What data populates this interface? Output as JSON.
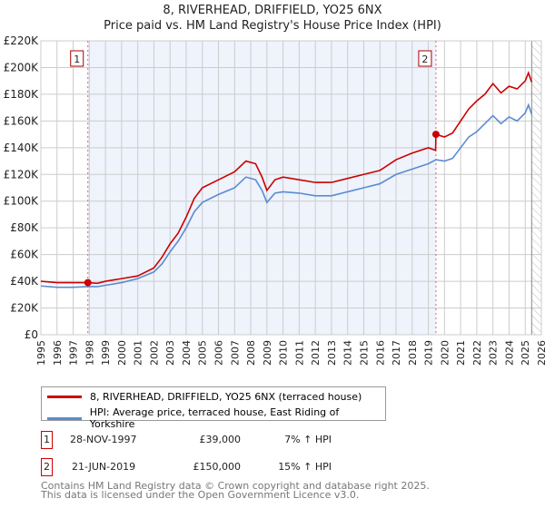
{
  "chart_data": {
    "type": "line",
    "title": "8, RIVERHEAD, DRIFFIELD, YO25 6NX",
    "subtitle": "Price paid vs. HM Land Registry's House Price Index (HPI)",
    "xlim": [
      1995,
      2026
    ],
    "ylim": [
      0,
      220000
    ],
    "x_ticks": [
      "1995",
      "1996",
      "1997",
      "1998",
      "1999",
      "2000",
      "2001",
      "2002",
      "2003",
      "2004",
      "2005",
      "2006",
      "2007",
      "2008",
      "2009",
      "2010",
      "2011",
      "2012",
      "2013",
      "2014",
      "2015",
      "2016",
      "2017",
      "2018",
      "2019",
      "2020",
      "2021",
      "2022",
      "2023",
      "2024",
      "2025",
      "2026"
    ],
    "y_ticks": [
      "£0",
      "£20K",
      "£40K",
      "£60K",
      "£80K",
      "£100K",
      "£120K",
      "£140K",
      "£160K",
      "£180K",
      "£200K",
      "£220K"
    ],
    "grid": true,
    "series": [
      {
        "name": "8, RIVERHEAD, DRIFFIELD, YO25 6NX (terraced house)",
        "color": "#cc0000",
        "x": [
          1995,
          1996,
          1997,
          1997.9,
          1998.5,
          1999,
          2000,
          2001,
          2002,
          2002.5,
          2003,
          2003.5,
          2004,
          2004.5,
          2005,
          2006,
          2007,
          2007.7,
          2008.3,
          2008.7,
          2009,
          2009.5,
          2010,
          2011,
          2012,
          2013,
          2014,
          2015,
          2016,
          2017,
          2018,
          2019,
          2019.45,
          2019.47,
          2020,
          2020.5,
          2021,
          2021.5,
          2022,
          2022.5,
          2023,
          2023.5,
          2024,
          2024.5,
          2025,
          2025.2,
          2025.4
        ],
        "y": [
          40000,
          39000,
          39000,
          39000,
          38500,
          40000,
          42000,
          44000,
          50000,
          58000,
          68000,
          76000,
          88000,
          102000,
          110000,
          116000,
          122000,
          130000,
          128000,
          118000,
          108000,
          116000,
          118000,
          116000,
          114000,
          114000,
          117000,
          120000,
          123000,
          131000,
          136000,
          140000,
          138000,
          150000,
          148000,
          151000,
          160000,
          169000,
          175000,
          180000,
          188000,
          181000,
          186000,
          184000,
          190000,
          196000,
          189000
        ]
      },
      {
        "name": "HPI: Average price, terraced house, East Riding of Yorkshire",
        "color": "#5b8bd0",
        "x": [
          1995,
          1996,
          1997,
          1997.9,
          1998.5,
          1999,
          2000,
          2001,
          2002,
          2002.5,
          2003,
          2003.5,
          2004,
          2004.5,
          2005,
          2006,
          2007,
          2007.7,
          2008.3,
          2008.7,
          2009,
          2009.5,
          2010,
          2011,
          2012,
          2013,
          2014,
          2015,
          2016,
          2017,
          2018,
          2019,
          2019.47,
          2020,
          2020.5,
          2021,
          2021.5,
          2022,
          2022.5,
          2023,
          2023.5,
          2024,
          2024.5,
          2025,
          2025.2,
          2025.4
        ],
        "y": [
          36500,
          35500,
          35500,
          36000,
          36000,
          37000,
          39000,
          42000,
          47000,
          53000,
          62000,
          70000,
          80000,
          92000,
          99000,
          105000,
          110000,
          118000,
          116000,
          108000,
          99000,
          106000,
          107000,
          106000,
          104000,
          104000,
          107000,
          110000,
          113000,
          120000,
          124000,
          128000,
          131000,
          130000,
          132000,
          140000,
          148000,
          152000,
          158000,
          164000,
          158000,
          163000,
          160000,
          166000,
          172000,
          165000
        ]
      }
    ],
    "sales": [
      {
        "label": "1",
        "x": 1997.91,
        "y": 39000
      },
      {
        "label": "2",
        "x": 2019.47,
        "y": 150000
      }
    ],
    "shaded_range": [
      1997.91,
      2019.47
    ],
    "hatched_from": 2025.4
  },
  "legend": [
    "8, RIVERHEAD, DRIFFIELD, YO25 6NX (terraced house)",
    "HPI: Average price, terraced house, East Riding of Yorkshire"
  ],
  "transactions": [
    {
      "num": "1",
      "date": "28-NOV-1997",
      "price": "£39,000",
      "hpi": "7% ↑ HPI"
    },
    {
      "num": "2",
      "date": "21-JUN-2019",
      "price": "£150,000",
      "hpi": "15% ↑ HPI"
    }
  ],
  "footer": [
    "Contains HM Land Registry data © Crown copyright and database right 2025.",
    "This data is licensed under the Open Government Licence v3.0."
  ]
}
